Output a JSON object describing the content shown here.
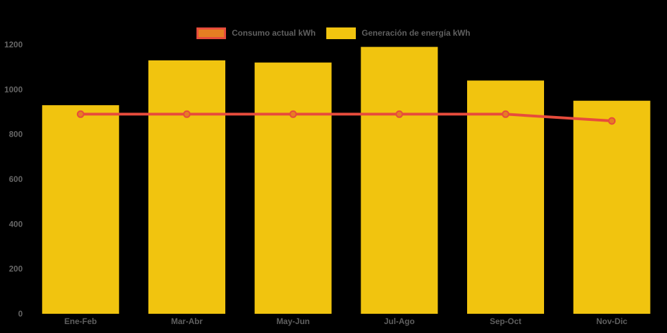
{
  "chart_data": {
    "type": "bar",
    "subtype": "bar-with-line-overlay",
    "categories": [
      "Ene-Feb",
      "Mar-Abr",
      "May-Jun",
      "Jul-Ago",
      "Sep-Oct",
      "Nov-Dic"
    ],
    "series": [
      {
        "name": "Consumo actual kWh",
        "type": "line",
        "values": [
          890,
          890,
          890,
          890,
          890,
          860
        ],
        "color": "#e74c3c",
        "marker_color": "#e67e22"
      },
      {
        "name": "Generación de energía kWh",
        "type": "bar",
        "values": [
          930,
          1130,
          1120,
          1190,
          1040,
          950
        ],
        "color": "#f1c40f"
      }
    ],
    "title": "",
    "xlabel": "",
    "ylabel": "",
    "ylim": [
      0,
      1200
    ],
    "ytick_step": 200,
    "yticks": [
      "0",
      "200",
      "400",
      "600",
      "800",
      "1000",
      "1200"
    ],
    "grid": false,
    "legend_position": "top",
    "background_color": "#000000",
    "axis_text_color": "#666666"
  }
}
